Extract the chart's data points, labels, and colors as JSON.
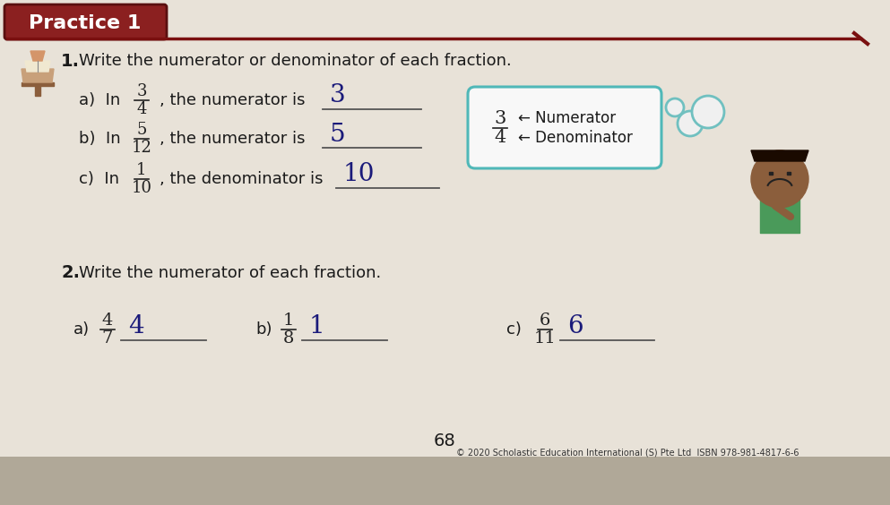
{
  "page_bg": "#d8d0c4",
  "content_bg": "#e8e2d8",
  "title": "Practice 1",
  "title_bg": "#8B2020",
  "title_color": "#ffffff",
  "title_fontsize": 16,
  "section1_text": "Write the numerator or denominator of each fraction.",
  "q1a_frac_num": "3",
  "q1a_frac_den": "4",
  "q1a_rest": ", the numerator is",
  "q1a_answer": "3",
  "q1b_frac_num": "5",
  "q1b_frac_den": "12",
  "q1b_rest": ", the numerator is",
  "q1b_answer": "5",
  "q1c_frac_num": "1",
  "q1c_frac_den": "10",
  "q1c_rest": ", the denominator is",
  "q1c_answer": "10",
  "box_num": "3",
  "box_den": "4",
  "box_num_label": "← Numerator",
  "box_den_label": "← Denominator",
  "section2_text": "Write the numerator of each fraction.",
  "q2a_frac_num": "4",
  "q2a_frac_den": "7",
  "q2a_answer": "4",
  "q2b_frac_num": "1",
  "q2b_frac_den": "8",
  "q2b_answer": "1",
  "q2c_frac_num": "6",
  "q2c_frac_den": "11",
  "q2c_answer": "6",
  "page_num": "68",
  "footer": "© 2020 Scholastic Education International (S) Pte Ltd  ISBN 978-981-4817-6-6",
  "answer_color": "#1a1a7a",
  "text_color": "#1a1a1a",
  "line_color": "#555555",
  "box_border_color": "#50b8b8",
  "red_line_color": "#7a1010",
  "title_border": "#5a1010",
  "bubble_color": "#70c0c0"
}
